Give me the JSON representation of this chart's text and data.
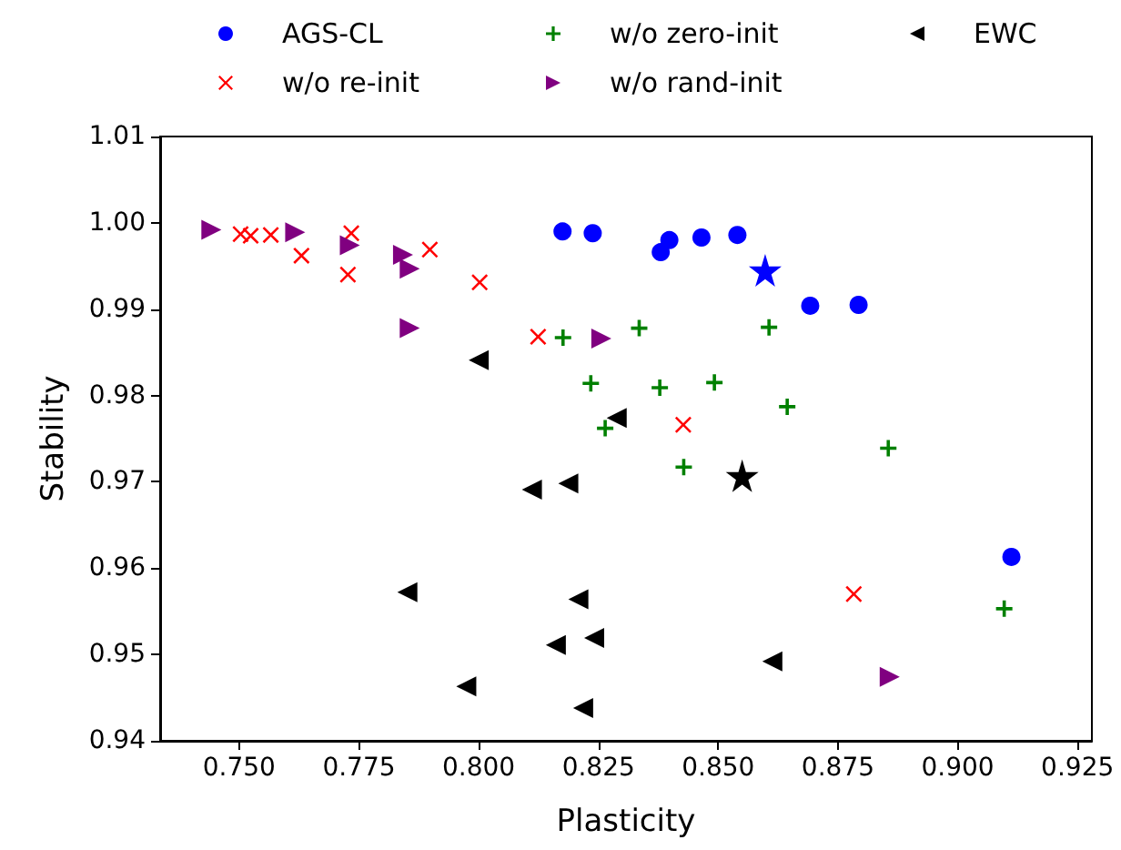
{
  "chart_data": {
    "type": "scatter",
    "xlabel": "Plasticity",
    "ylabel": "Stability",
    "xlim": [
      0.7335,
      0.928
    ],
    "ylim": [
      0.94,
      1.01
    ],
    "xticks": [
      {
        "value": 0.75,
        "label": "0.750"
      },
      {
        "value": 0.775,
        "label": "0.775"
      },
      {
        "value": 0.8,
        "label": "0.800"
      },
      {
        "value": 0.825,
        "label": "0.825"
      },
      {
        "value": 0.85,
        "label": "0.850"
      },
      {
        "value": 0.875,
        "label": "0.875"
      },
      {
        "value": 0.9,
        "label": "0.900"
      },
      {
        "value": 0.925,
        "label": "0.925"
      }
    ],
    "yticks": [
      {
        "value": 0.94,
        "label": "0.94"
      },
      {
        "value": 0.95,
        "label": "0.95"
      },
      {
        "value": 0.96,
        "label": "0.96"
      },
      {
        "value": 0.97,
        "label": "0.97"
      },
      {
        "value": 0.98,
        "label": "0.98"
      },
      {
        "value": 0.99,
        "label": "0.99"
      },
      {
        "value": 1.0,
        "label": "1.00"
      },
      {
        "value": 1.01,
        "label": "1.01"
      }
    ],
    "grid": false,
    "legend": "top",
    "series": [
      {
        "name": "AGS-CL",
        "color": "#0000ff",
        "marker": "circle",
        "x": [
          0.8175,
          0.8238,
          0.8398,
          0.838,
          0.8465,
          0.854,
          0.8692,
          0.8793,
          0.9112
        ],
        "values": [
          0.999,
          0.9988,
          0.998,
          0.9966,
          0.9983,
          0.9986,
          0.9904,
          0.9905,
          0.9613
        ]
      },
      {
        "name": "w/o re-init",
        "color": "#ff0000",
        "marker": "x",
        "x": [
          0.7503,
          0.7524,
          0.7566,
          0.763,
          0.7734,
          0.7727,
          0.7898,
          0.8002,
          0.8124,
          0.8427,
          0.8783
        ],
        "values": [
          0.9987,
          0.9985,
          0.9986,
          0.9962,
          0.9988,
          0.994,
          0.9969,
          0.9931,
          0.9868,
          0.9766,
          0.957
        ]
      },
      {
        "name": "w/o zero-init",
        "color": "#008000",
        "marker": "plus",
        "x": [
          0.8176,
          0.8335,
          0.8234,
          0.8264,
          0.8606,
          0.8378,
          0.8492,
          0.8644,
          0.8428,
          0.8855,
          0.9097
        ],
        "values": [
          0.9867,
          0.9878,
          0.9814,
          0.9762,
          0.9879,
          0.9809,
          0.9815,
          0.9787,
          0.9717,
          0.9739,
          0.9553
        ]
      },
      {
        "name": "w/o rand-init",
        "color": "#800080",
        "marker": "triangle-right",
        "x": [
          0.7442,
          0.7617,
          0.7731,
          0.7842,
          0.7856,
          0.7856,
          0.8256,
          0.8858
        ],
        "values": [
          0.9992,
          0.9989,
          0.9974,
          0.9963,
          0.9947,
          0.9878,
          0.9866,
          0.9474
        ]
      },
      {
        "name": "EWC",
        "color": "#000000",
        "marker": "triangle-left",
        "x": [
          0.8,
          0.8288,
          0.8111,
          0.8187,
          0.7851,
          0.8208,
          0.8241,
          0.8161,
          0.7974,
          0.8218,
          0.8613
        ],
        "values": [
          0.9841,
          0.9774,
          0.9691,
          0.9698,
          0.9572,
          0.9564,
          0.9519,
          0.9511,
          0.9463,
          0.9438,
          0.9492
        ]
      },
      {
        "color": "#0000ff",
        "marker": "star",
        "x": [
          0.8598
        ],
        "values": [
          0.9945
        ]
      },
      {
        "color": "#000000",
        "marker": "star",
        "x": [
          0.855
        ],
        "values": [
          0.9707
        ]
      }
    ]
  }
}
